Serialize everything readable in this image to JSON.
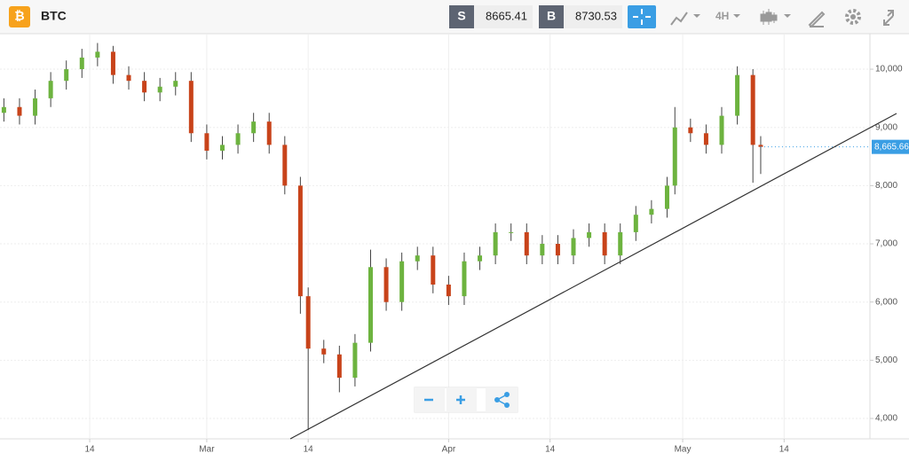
{
  "header": {
    "symbol": "BTC",
    "sell_label": "S",
    "sell_price": "8665.41",
    "buy_label": "B",
    "buy_price": "8730.53",
    "interval": "4H"
  },
  "chart_data": {
    "type": "candlestick",
    "x": [
      2,
      4,
      6,
      8,
      10,
      12,
      14,
      16,
      18,
      20,
      22,
      24,
      26,
      28,
      30,
      32,
      34,
      36,
      38,
      40,
      41,
      43,
      45,
      47,
      49,
      51,
      53,
      55,
      57,
      59,
      61,
      63,
      65,
      67,
      69,
      71,
      73,
      75,
      77,
      79,
      81,
      83,
      85,
      87,
      88,
      90,
      92,
      94,
      96,
      98,
      99
    ],
    "open": [
      9250,
      9350,
      9200,
      9500,
      9800,
      10000,
      10200,
      10300,
      9900,
      9800,
      9600,
      9700,
      9800,
      8900,
      8600,
      8700,
      8900,
      9100,
      8700,
      8000,
      6100,
      5200,
      5100,
      4700,
      5300,
      6600,
      6000,
      6700,
      6800,
      6300,
      6100,
      6700,
      6800,
      7200,
      7200,
      6800,
      7000,
      6800,
      7100,
      7200,
      6800,
      7200,
      7500,
      7600,
      8000,
      9000,
      8900,
      8700,
      9200,
      9900,
      8700
    ],
    "high": [
      9500,
      9500,
      9650,
      9950,
      10150,
      10350,
      10450,
      10400,
      10050,
      9950,
      9850,
      9950,
      9950,
      9050,
      8850,
      9050,
      9250,
      9250,
      8850,
      8150,
      6250,
      5350,
      5250,
      5450,
      6900,
      6750,
      6850,
      6950,
      6950,
      6450,
      6850,
      6950,
      7350,
      7350,
      7350,
      7150,
      7150,
      7250,
      7350,
      7350,
      7350,
      7650,
      7750,
      8150,
      9350,
      9150,
      9050,
      9350,
      10050,
      10000,
      8850
    ],
    "low": [
      9100,
      9050,
      9050,
      9350,
      9650,
      9850,
      10050,
      9750,
      9650,
      9450,
      9450,
      9550,
      8750,
      8450,
      8450,
      8550,
      8750,
      8550,
      7850,
      5800,
      3800,
      4950,
      4450,
      4550,
      5150,
      5850,
      5850,
      6550,
      6150,
      5950,
      5950,
      6550,
      6650,
      7050,
      6650,
      6650,
      6650,
      6650,
      6950,
      6650,
      6650,
      7050,
      7350,
      7450,
      7850,
      8750,
      8550,
      8550,
      9050,
      8050,
      8200
    ],
    "close": [
      9350,
      9200,
      9500,
      9800,
      10000,
      10200,
      10300,
      9900,
      9800,
      9600,
      9700,
      9800,
      8900,
      8600,
      8700,
      8900,
      9100,
      8700,
      8000,
      6100,
      5200,
      5100,
      4700,
      5300,
      6600,
      6000,
      6700,
      6800,
      6300,
      6100,
      6700,
      6800,
      7200,
      7200,
      6800,
      7000,
      6800,
      7100,
      7200,
      6800,
      7200,
      7500,
      7600,
      8000,
      9000,
      8900,
      8700,
      9200,
      9900,
      8700,
      8665
    ],
    "up_color": "#6db33f",
    "down_color": "#c8431a",
    "xlim": [
      1.5,
      113
    ],
    "ylim": [
      3650,
      10610
    ],
    "xticks": [
      {
        "value": 13,
        "label": "14"
      },
      {
        "value": 28,
        "label": "Mar"
      },
      {
        "value": 41,
        "label": "14"
      },
      {
        "value": 59,
        "label": "Apr"
      },
      {
        "value": 72,
        "label": "14"
      },
      {
        "value": 89,
        "label": "May"
      },
      {
        "value": 102,
        "label": "14"
      }
    ],
    "yticks": [
      {
        "value": 4000,
        "label": "4,000"
      },
      {
        "value": 5000,
        "label": "5,000"
      },
      {
        "value": 6000,
        "label": "6,000"
      },
      {
        "value": 7000,
        "label": "7,000"
      },
      {
        "value": 8000,
        "label": "8,000"
      },
      {
        "value": 9000,
        "label": "9,000"
      },
      {
        "value": 10000,
        "label": "10,000"
      }
    ],
    "last_price": {
      "value": 8665.66,
      "label": "8,665.66"
    },
    "grid": true
  }
}
